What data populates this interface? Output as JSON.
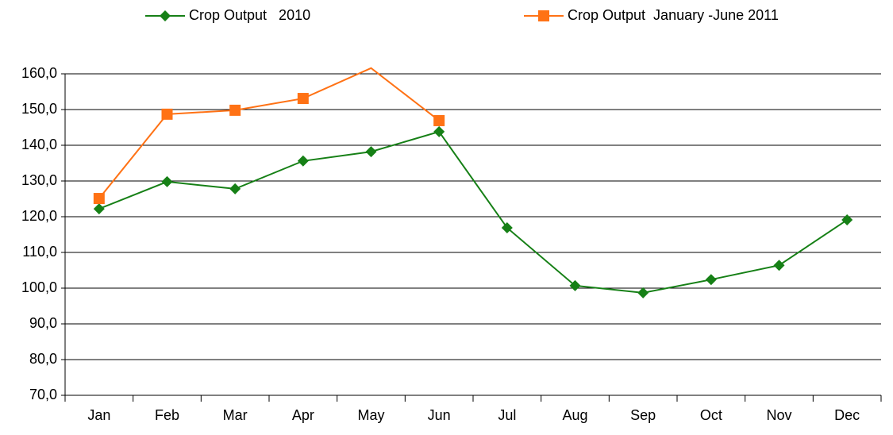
{
  "chart_data": {
    "type": "line",
    "categories": [
      "Jan",
      "Feb",
      "Mar",
      "Apr",
      "May",
      "Jun",
      "Jul",
      "Aug",
      "Sep",
      "Oct",
      "Nov",
      "Dec"
    ],
    "series": [
      {
        "name": "Crop Output   2010",
        "color": "#168016",
        "marker": "diamond",
        "values": [
          122.2,
          129.8,
          127.8,
          135.6,
          138.2,
          143.8,
          116.9,
          100.7,
          98.7,
          102.4,
          106.4,
          119.1
        ]
      },
      {
        "name": "Crop Output  January -June 2011",
        "color": "#ff7215",
        "marker": "square",
        "values": [
          125.1,
          148.7,
          149.8,
          153.1,
          161.6,
          146.9,
          null,
          null,
          null,
          null,
          null,
          null
        ]
      }
    ],
    "ylim": [
      70,
      160
    ],
    "yticks": [
      {
        "value": 70,
        "label": "70,0"
      },
      {
        "value": 80,
        "label": "80,0"
      },
      {
        "value": 90,
        "label": "90,0"
      },
      {
        "value": 100,
        "label": "100,0"
      },
      {
        "value": 110,
        "label": "110,0"
      },
      {
        "value": 120,
        "label": "120,0"
      },
      {
        "value": 130,
        "label": "130,0"
      },
      {
        "value": 140,
        "label": "140,0"
      },
      {
        "value": 150,
        "label": "150,0"
      },
      {
        "value": 160,
        "label": "160,0"
      }
    ],
    "grid": true,
    "legend": "top"
  }
}
